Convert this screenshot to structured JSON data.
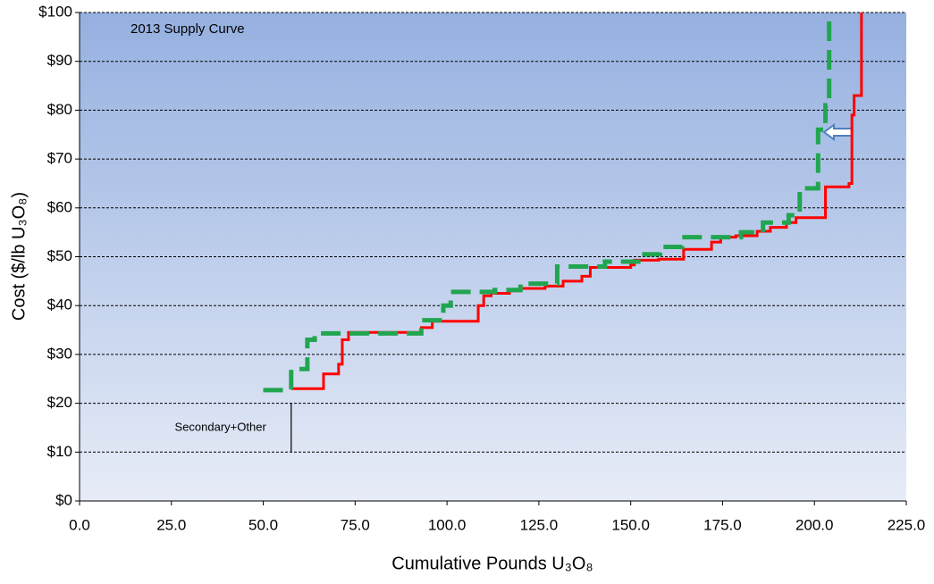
{
  "chart_data": {
    "type": "line",
    "step": "post",
    "xlabel": "Cumulative Pounds U₃O₈",
    "ylabel": "Cost ($/lb U₃O₈)",
    "xlim": [
      0,
      225
    ],
    "ylim": [
      0,
      100
    ],
    "xticks": [
      {
        "value": 0,
        "label": "0.0"
      },
      {
        "value": 25,
        "label": "25.0"
      },
      {
        "value": 50,
        "label": "50.0"
      },
      {
        "value": 75,
        "label": "75.0"
      },
      {
        "value": 100,
        "label": "100.0"
      },
      {
        "value": 125,
        "label": "125.0"
      },
      {
        "value": 150,
        "label": "150.0"
      },
      {
        "value": 175,
        "label": "175.0"
      },
      {
        "value": 200,
        "label": "200.0"
      },
      {
        "value": 225,
        "label": "225.0"
      }
    ],
    "yticks": [
      {
        "value": 0,
        "label": "$0"
      },
      {
        "value": 10,
        "label": "$10"
      },
      {
        "value": 20,
        "label": "$20"
      },
      {
        "value": 30,
        "label": "$30"
      },
      {
        "value": 40,
        "label": "$40"
      },
      {
        "value": 50,
        "label": "$50"
      },
      {
        "value": 60,
        "label": "$60"
      },
      {
        "value": 70,
        "label": "$70"
      },
      {
        "value": 80,
        "label": "$80"
      },
      {
        "value": 90,
        "label": "$90"
      },
      {
        "value": 100,
        "label": "$100"
      }
    ],
    "grid": true,
    "series": [
      {
        "color": "#ff0000",
        "dashed": false,
        "x": [
          57.6,
          66.4,
          70.5,
          71.5,
          73.2,
          93,
          96,
          108.5,
          110,
          112,
          117,
          120,
          126.7,
          131.6,
          136.7,
          139,
          150,
          151,
          157.6,
          164.4,
          172,
          174.5,
          178.6,
          184.4,
          188,
          192.4,
          195,
          203,
          209.4,
          210.2,
          210.8,
          212.8
        ],
        "values": [
          23,
          26,
          28,
          33,
          34.5,
          35.5,
          36.8,
          40,
          42,
          42.5,
          43,
          43.5,
          44,
          45,
          46,
          47.8,
          48.3,
          49.3,
          49.5,
          51.5,
          53,
          54,
          54.3,
          55.2,
          56,
          57,
          58,
          64.3,
          65,
          79,
          83,
          100
        ]
      },
      {
        "color": "#21a550",
        "dashed": true,
        "x": [
          50,
          57.6,
          62,
          64,
          93,
          99,
          101,
          113,
          120,
          130,
          143,
          153,
          158,
          164,
          180,
          186,
          193,
          196,
          201,
          203,
          204
        ],
        "values": [
          22.7,
          27,
          33,
          34.3,
          37,
          40,
          42.8,
          43.2,
          44.5,
          48,
          49,
          50.5,
          52,
          54,
          55,
          57,
          58.5,
          64,
          76,
          81,
          100
        ]
      }
    ],
    "annotations": [
      {
        "text": "2013 Supply Curve"
      },
      {
        "text": "Secondary+Other",
        "x": 57.6,
        "y_from": 10,
        "y_to": 20
      }
    ]
  }
}
